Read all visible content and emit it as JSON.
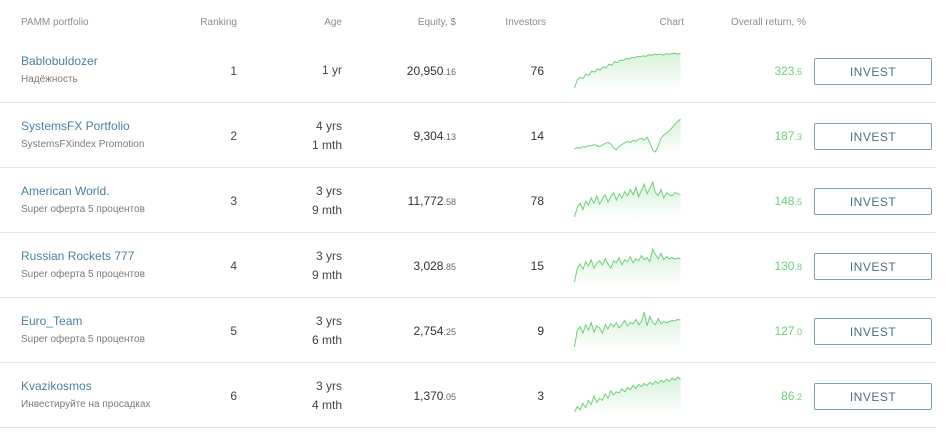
{
  "header": {
    "name": "PAMM portfolio",
    "ranking": "Ranking",
    "age": "Age",
    "equity": "Equity, $",
    "investors": "Investors",
    "chart": "Chart",
    "overall_return": "Overall return, %"
  },
  "accent_color": "#6fcf7a",
  "link_color": "#4d7f9e",
  "rows": [
    {
      "name": "Bablobuldozer",
      "description": "Надёжность",
      "ranking": "1",
      "age_line1": "1 yr",
      "age_line2": "",
      "equity_main": "20,950",
      "equity_cents": ".16",
      "investors": "76",
      "return_main": "323",
      "return_cents": ".5",
      "button": "INVEST",
      "spark": [
        2,
        18,
        22,
        20,
        28,
        26,
        34,
        32,
        38,
        36,
        42,
        40,
        47,
        45,
        52,
        50,
        55,
        54,
        58,
        57,
        60,
        59,
        62,
        61,
        63,
        62,
        65,
        64,
        66,
        65,
        66,
        64,
        67,
        66,
        67,
        68,
        66,
        68
      ]
    },
    {
      "name": "SystemsFX Portfolio",
      "description": "SystemsFXindex Promotion",
      "ranking": "2",
      "age_line1": "4 yrs",
      "age_line2": "1 mth",
      "equity_main": "9,304",
      "equity_cents": ".13",
      "investors": "14",
      "return_main": "187",
      "return_cents": ".3",
      "button": "INVEST",
      "spark": [
        10,
        12,
        11,
        14,
        13,
        16,
        15,
        18,
        16,
        14,
        17,
        20,
        22,
        19,
        12,
        8,
        14,
        18,
        21,
        24,
        22,
        26,
        24,
        28,
        30,
        26,
        32,
        22,
        8,
        4,
        16,
        30,
        36,
        40,
        44,
        50,
        56,
        62,
        66
      ]
    },
    {
      "name": "American World.",
      "description": "Super оферта 5 процентов",
      "ranking": "3",
      "age_line1": "3 yrs",
      "age_line2": "9 mth",
      "equity_main": "11,772",
      "equity_cents": ".58",
      "investors": "78",
      "return_main": "148",
      "return_cents": ".5",
      "button": "INVEST",
      "spark": [
        4,
        22,
        30,
        18,
        34,
        26,
        40,
        30,
        44,
        28,
        38,
        46,
        32,
        42,
        50,
        36,
        48,
        40,
        52,
        44,
        56,
        46,
        60,
        42,
        54,
        66,
        48,
        58,
        70,
        50,
        44,
        56,
        40,
        50,
        46,
        44,
        50,
        48,
        46
      ]
    },
    {
      "name": "Russian Rockets 777",
      "description": "Super оферта 5 процентов",
      "ranking": "4",
      "age_line1": "3 yrs",
      "age_line2": "9 mth",
      "equity_main": "3,028",
      "equity_cents": ".85",
      "investors": "15",
      "return_main": "130",
      "return_cents": ".8",
      "button": "INVEST",
      "spark": [
        4,
        30,
        38,
        28,
        42,
        34,
        46,
        30,
        40,
        44,
        36,
        48,
        38,
        30,
        44,
        40,
        50,
        36,
        46,
        42,
        52,
        40,
        48,
        44,
        54,
        46,
        50,
        42,
        66,
        56,
        48,
        58,
        46,
        52,
        48,
        50,
        47,
        49,
        48
      ]
    },
    {
      "name": "Euro_Team",
      "description": "Super оферта 5 процентов",
      "ranking": "5",
      "age_line1": "3 yrs",
      "age_line2": "6 mth",
      "equity_main": "2,754",
      "equity_cents": ".25",
      "investors": "9",
      "return_main": "127",
      "return_cents": ".0",
      "button": "INVEST",
      "spark": [
        4,
        36,
        42,
        30,
        46,
        36,
        50,
        32,
        44,
        40,
        30,
        46,
        38,
        48,
        42,
        50,
        40,
        46,
        54,
        44,
        50,
        48,
        56,
        46,
        52,
        70,
        44,
        62,
        50,
        46,
        58,
        48,
        52,
        50,
        52,
        54,
        53,
        56,
        55
      ]
    },
    {
      "name": "Kvazikosmos",
      "description": "Инвестируйте на просадках",
      "ranking": "6",
      "age_line1": "3 yrs",
      "age_line2": "4 mth",
      "equity_main": "1,370",
      "equity_cents": ".05",
      "investors": "3",
      "return_main": "86",
      "return_cents": ".2",
      "button": "INVEST",
      "spark": [
        4,
        14,
        8,
        20,
        12,
        26,
        18,
        34,
        22,
        30,
        26,
        38,
        30,
        44,
        36,
        42,
        40,
        48,
        42,
        50,
        46,
        54,
        48,
        56,
        52,
        58,
        54,
        60,
        56,
        62,
        58,
        64,
        60,
        66,
        62,
        68,
        64,
        70,
        66
      ]
    }
  ]
}
